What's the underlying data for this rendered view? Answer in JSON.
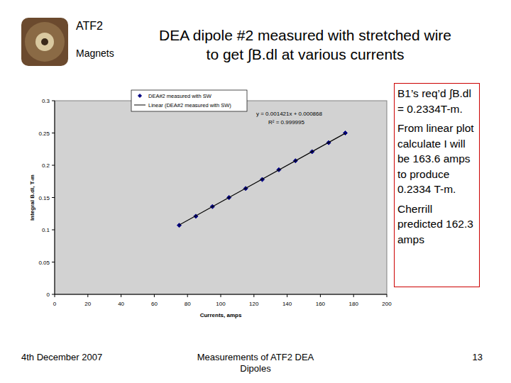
{
  "slide": {
    "header": [
      "ATF2",
      "Magnets"
    ],
    "title_lines": [
      "DEA dipole #2 measured with stretched wire",
      "to get ∫B.dl at various currents"
    ],
    "notes": [
      "B1’s req’d ∫B.dl = 0.2334T-m.",
      "From linear plot calculate I will be 163.6 amps to produce 0.2334 T-m.",
      "Cherrill predicted 162.3 amps"
    ],
    "footer": {
      "date": "4th December 2007",
      "center": "Measurements of ATF2 DEA Dipoles",
      "page": "13"
    }
  },
  "chart_data": {
    "type": "scatter",
    "x_label": "Currents, amps",
    "y_label": "Integral B.dl, T-m",
    "annotations": [
      "y = 0.001421x + 0.000868",
      "R² = 0.999995"
    ],
    "series": [
      {
        "name": "DEA#2 measured with SW",
        "type": "scatter",
        "color": "#000080",
        "marker": "diamond",
        "x": [
          75,
          85,
          95,
          105,
          115,
          125,
          135,
          145,
          155,
          165,
          175
        ],
        "values": [
          0.107,
          0.121,
          0.136,
          0.15,
          0.164,
          0.178,
          0.193,
          0.207,
          0.221,
          0.235,
          0.25
        ]
      },
      {
        "name": "Linear (DEA#2 measured with SW)",
        "type": "line",
        "color": "#000000",
        "line_style": "solid",
        "x": [
          75,
          175
        ],
        "values": [
          0.1074,
          0.2496
        ]
      }
    ],
    "xlim": [
      0,
      200
    ],
    "xticks": [
      0,
      20,
      40,
      60,
      80,
      100,
      120,
      140,
      160,
      180,
      200
    ],
    "ylim": [
      0,
      0.3
    ],
    "yticks": [
      0,
      0.05,
      0.1,
      0.15,
      0.2,
      0.25,
      0.3
    ],
    "grid": false,
    "legend": "top"
  }
}
